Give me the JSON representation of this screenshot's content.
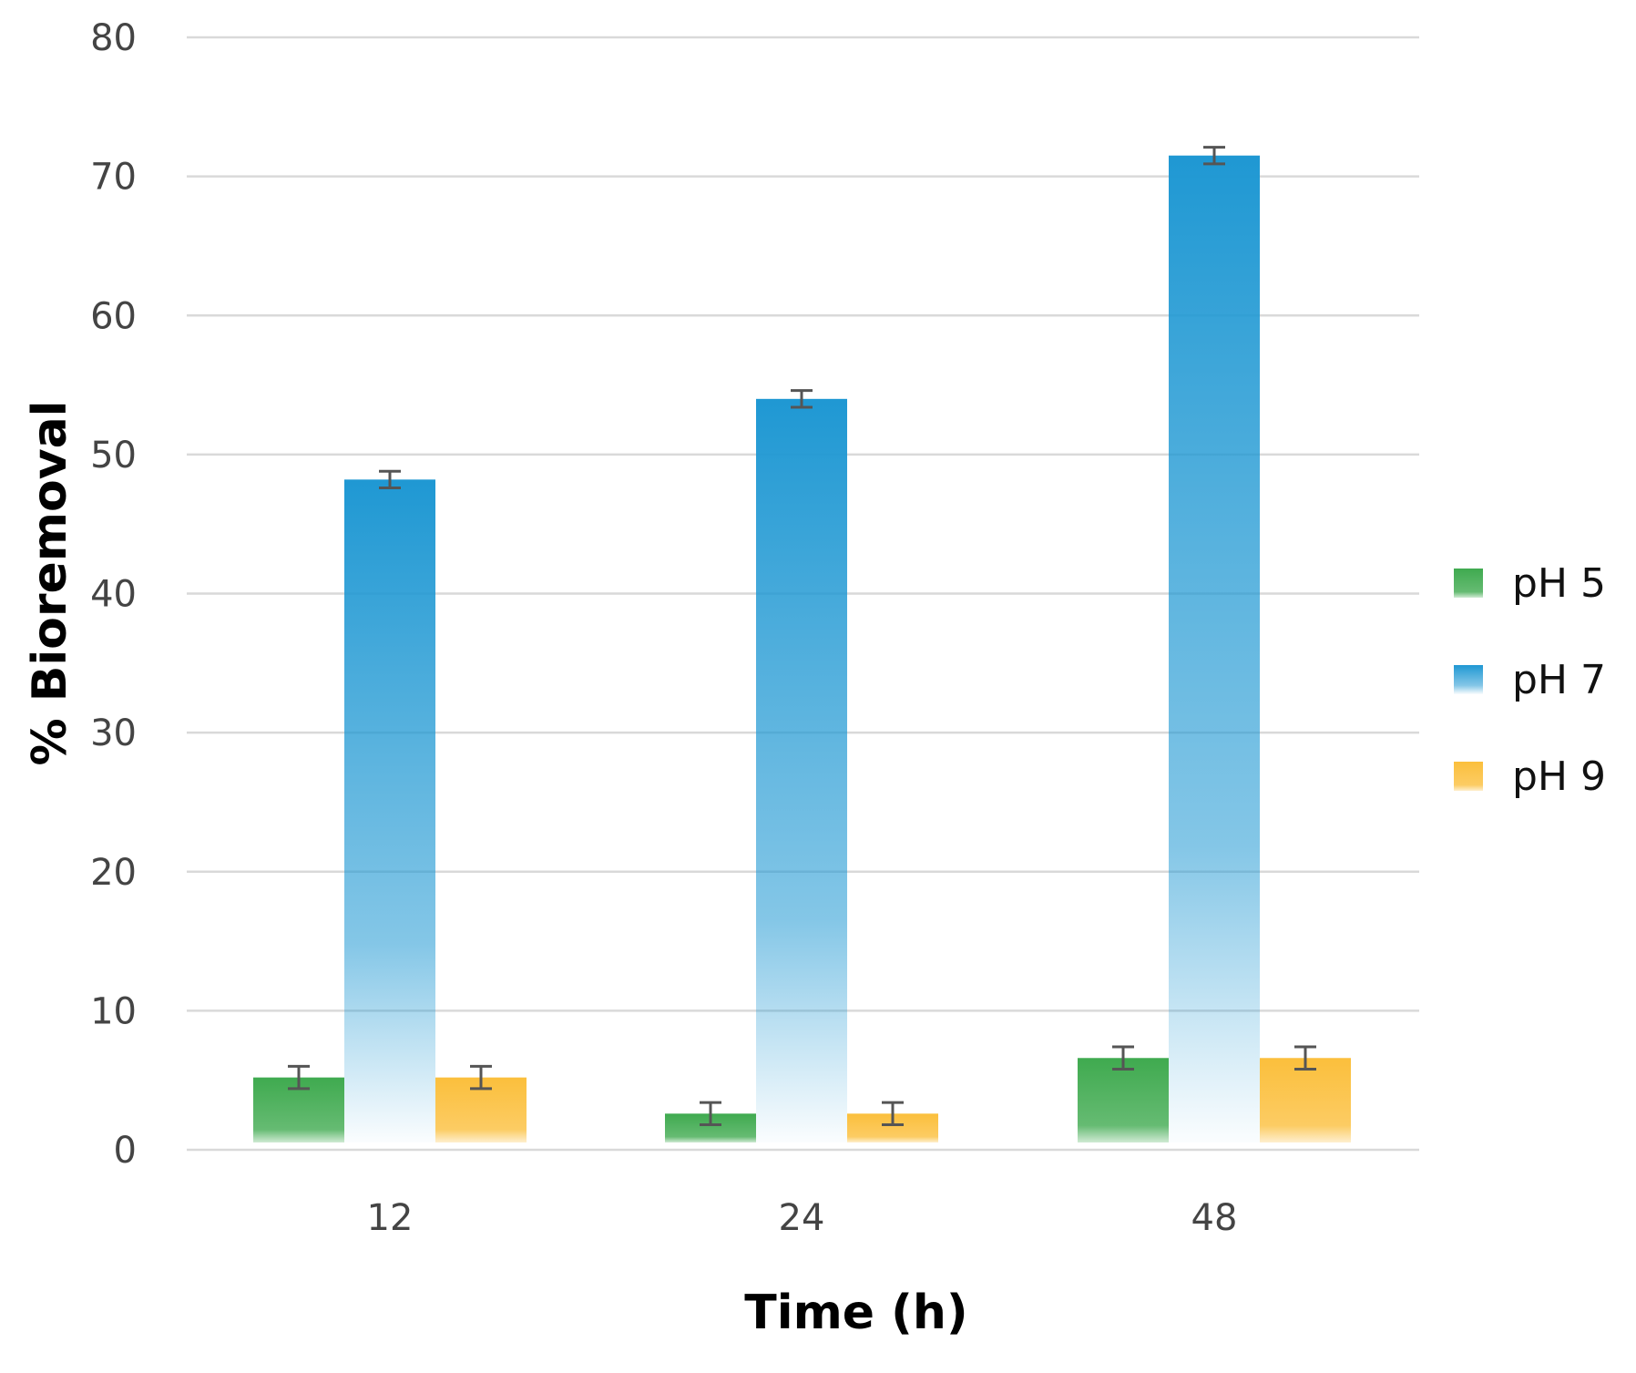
{
  "chart_data": {
    "type": "bar",
    "title": "",
    "xlabel": "Time (h)",
    "ylabel": "% Bioremoval",
    "categories": [
      "12",
      "24",
      "48"
    ],
    "ylim": [
      0,
      80
    ],
    "yticks": [
      0,
      10,
      20,
      30,
      40,
      50,
      60,
      70,
      80
    ],
    "grid": true,
    "legend_position": "right",
    "series": [
      {
        "name": "pH 5",
        "color": "#3faa4f",
        "values": [
          5.2,
          2.6,
          6.6
        ],
        "errors": [
          0.8,
          0.8,
          0.8
        ]
      },
      {
        "name": "pH 7",
        "color": "#1f98d3",
        "values": [
          48.2,
          54.0,
          71.5
        ],
        "errors": [
          0.6,
          0.6,
          0.6
        ]
      },
      {
        "name": "pH 9",
        "color": "#fbbf3c",
        "values": [
          5.2,
          2.6,
          6.6
        ],
        "errors": [
          0.8,
          0.8,
          0.8
        ]
      }
    ]
  }
}
